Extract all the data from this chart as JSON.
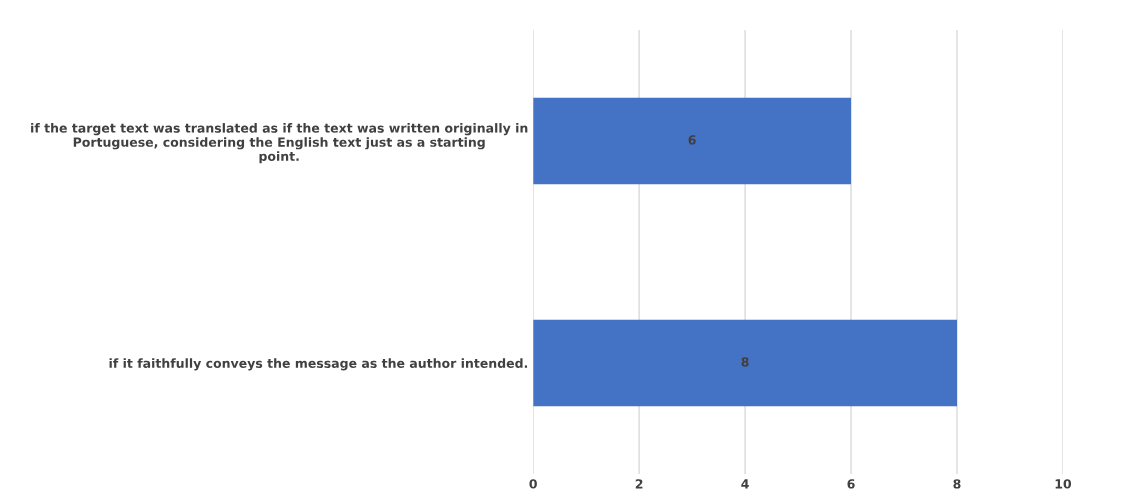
{
  "chart_data": {
    "type": "bar",
    "orientation": "horizontal",
    "categories": [
      "if the target text was translated as if the text was written originally in\nPortuguese, considering the English text just as a starting\npoint.",
      "if it faithfully conveys the message as the author intended."
    ],
    "values": [
      6,
      8
    ],
    "color": "#4472c4",
    "xlim": [
      0,
      10
    ],
    "xticks": [
      0,
      2,
      4,
      6,
      8,
      10
    ],
    "grid": "x",
    "data_labels": true
  }
}
